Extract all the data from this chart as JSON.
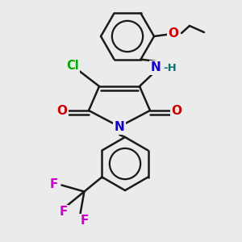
{
  "bg_color": "#ebebeb",
  "bond_color": "#1a1a1a",
  "bond_lw": 1.8,
  "atom_colors": {
    "N": "#1100cc",
    "O": "#cc0000",
    "Cl": "#00aa00",
    "F": "#cc00cc",
    "H": "#007777"
  },
  "figsize": [
    3.0,
    3.0
  ],
  "dpi": 100
}
